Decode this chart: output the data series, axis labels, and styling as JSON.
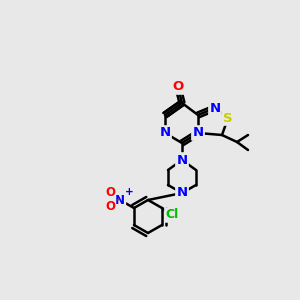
{
  "bg_color": "#e8e8e8",
  "bond_color": "#000000",
  "bond_width": 1.8,
  "font_size": 9.5,
  "colors": {
    "N": "#0000ff",
    "O": "#ff0000",
    "S": "#cccc00",
    "Cl": "#00bb00",
    "C": "#000000"
  }
}
